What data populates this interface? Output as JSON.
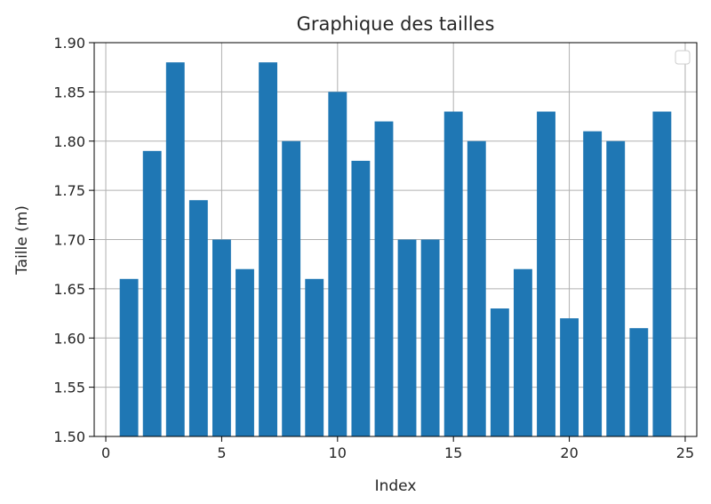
{
  "chart_data": {
    "type": "bar",
    "title": "Graphique des tailles",
    "xlabel": "Index",
    "ylabel": "Taille (m)",
    "x": [
      1,
      2,
      3,
      4,
      5,
      6,
      7,
      8,
      9,
      10,
      11,
      12,
      13,
      14,
      15,
      16,
      17,
      18,
      19,
      20,
      21,
      22,
      23,
      24
    ],
    "values": [
      1.66,
      1.79,
      1.88,
      1.74,
      1.7,
      1.67,
      1.88,
      1.8,
      1.66,
      1.85,
      1.78,
      1.82,
      1.7,
      1.7,
      1.83,
      1.8,
      1.63,
      1.67,
      1.83,
      1.62,
      1.81,
      1.8,
      1.61,
      1.83
    ],
    "xlim": [
      -0.5,
      25.5
    ],
    "ylim": [
      1.5,
      1.9
    ],
    "xticks": [
      "0",
      "5",
      "10",
      "15",
      "20",
      "25"
    ],
    "yticks": [
      "1.50",
      "1.55",
      "1.60",
      "1.65",
      "1.70",
      "1.75",
      "1.80",
      "1.85",
      "1.90"
    ],
    "grid": true,
    "legend": "top-right",
    "legend_entries": [],
    "bar_color": "#1f77b4"
  }
}
